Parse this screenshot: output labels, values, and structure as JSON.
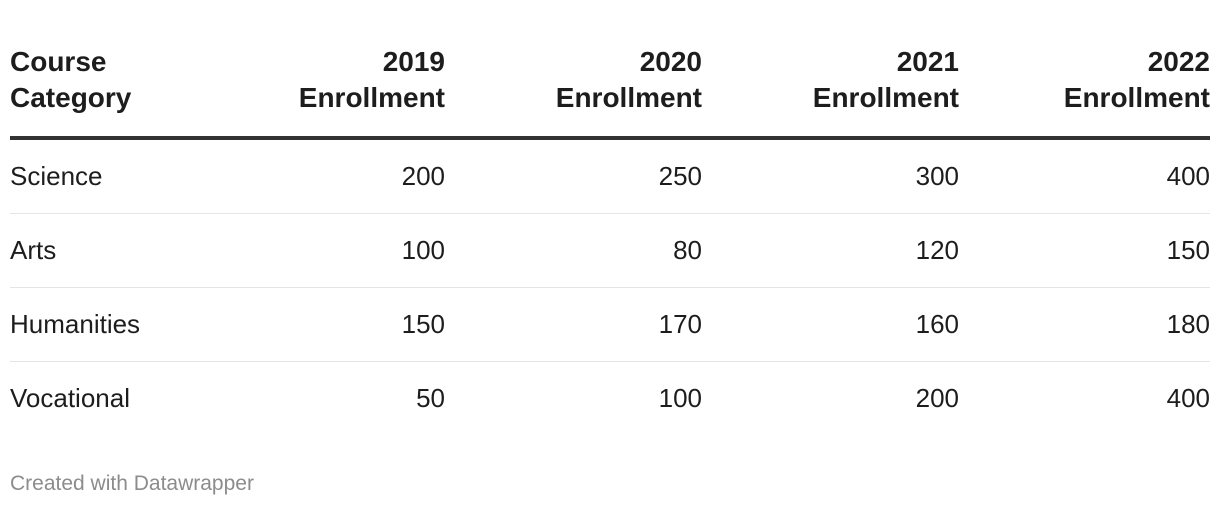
{
  "chart_data": {
    "type": "table",
    "columns": [
      "Course Category",
      "2019 Enrollment",
      "2020 Enrollment",
      "2021 Enrollment",
      "2022 Enrollment"
    ],
    "header_lines": [
      [
        "Course",
        "Category"
      ],
      [
        "2019",
        "Enrollment"
      ],
      [
        "2020",
        "Enrollment"
      ],
      [
        "2021",
        "Enrollment"
      ],
      [
        "2022",
        "Enrollment"
      ]
    ],
    "rows": [
      {
        "category": "Science",
        "values": [
          200,
          250,
          300,
          400
        ]
      },
      {
        "category": "Arts",
        "values": [
          100,
          80,
          120,
          150
        ]
      },
      {
        "category": "Humanities",
        "values": [
          150,
          170,
          160,
          180
        ]
      },
      {
        "category": "Vocational",
        "values": [
          50,
          100,
          200,
          400
        ]
      }
    ]
  },
  "footer": {
    "credit": "Created with Datawrapper"
  },
  "colors": {
    "text": "#1d1d1d",
    "header_rule": "#333333",
    "row_rule": "#e5e5e5",
    "footer_text": "#8c8c8c"
  }
}
